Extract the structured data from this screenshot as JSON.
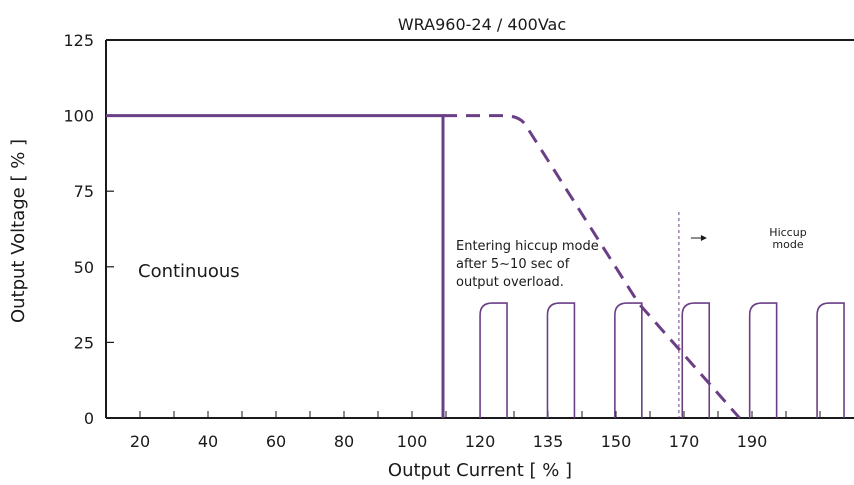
{
  "chart_data": {
    "type": "line",
    "title": "WRA960-24 / 400Vac",
    "xlabel": "Output Current [ % ]",
    "ylabel": "Output Voltage  [ % ]",
    "ylim": [
      0,
      125
    ],
    "y_ticks": [
      "0",
      "25",
      "50",
      "75",
      "100",
      "125"
    ],
    "x_tick_labels": [
      "20",
      "40",
      "60",
      "80",
      "100",
      "120",
      "135",
      "150",
      "170",
      "190"
    ],
    "grid": false,
    "series": [
      {
        "style": "solid",
        "color": "#6b3f86",
        "points": [
          [
            10,
            100
          ],
          [
            110,
            100
          ],
          [
            110,
            0
          ]
        ]
      },
      {
        "style": "dashed",
        "color": "#6b3f86",
        "points": [
          [
            110,
            100
          ],
          [
            128,
            100
          ],
          [
            135,
            96
          ],
          [
            168,
            38
          ],
          [
            198,
            0
          ]
        ]
      },
      {
        "style": "pulses",
        "color": "#6b3f86",
        "level": 38,
        "pulses": [
          [
            121,
            129
          ],
          [
            141,
            149
          ],
          [
            161,
            169
          ],
          [
            181,
            189
          ],
          [
            201,
            209
          ],
          [
            221,
            229
          ]
        ]
      }
    ],
    "hiccup_marker_x": 180,
    "annotations": {
      "continuous": "Continuous",
      "entering_line1": "Entering hiccup mode",
      "entering_line2": "after 5∼10 sec  of",
      "entering_line3": "output overload.",
      "hiccup_line1": "Hiccup",
      "hiccup_line2": "mode"
    },
    "colors": {
      "curve": "#6b3f86",
      "axis": "#1a1a1a"
    }
  }
}
